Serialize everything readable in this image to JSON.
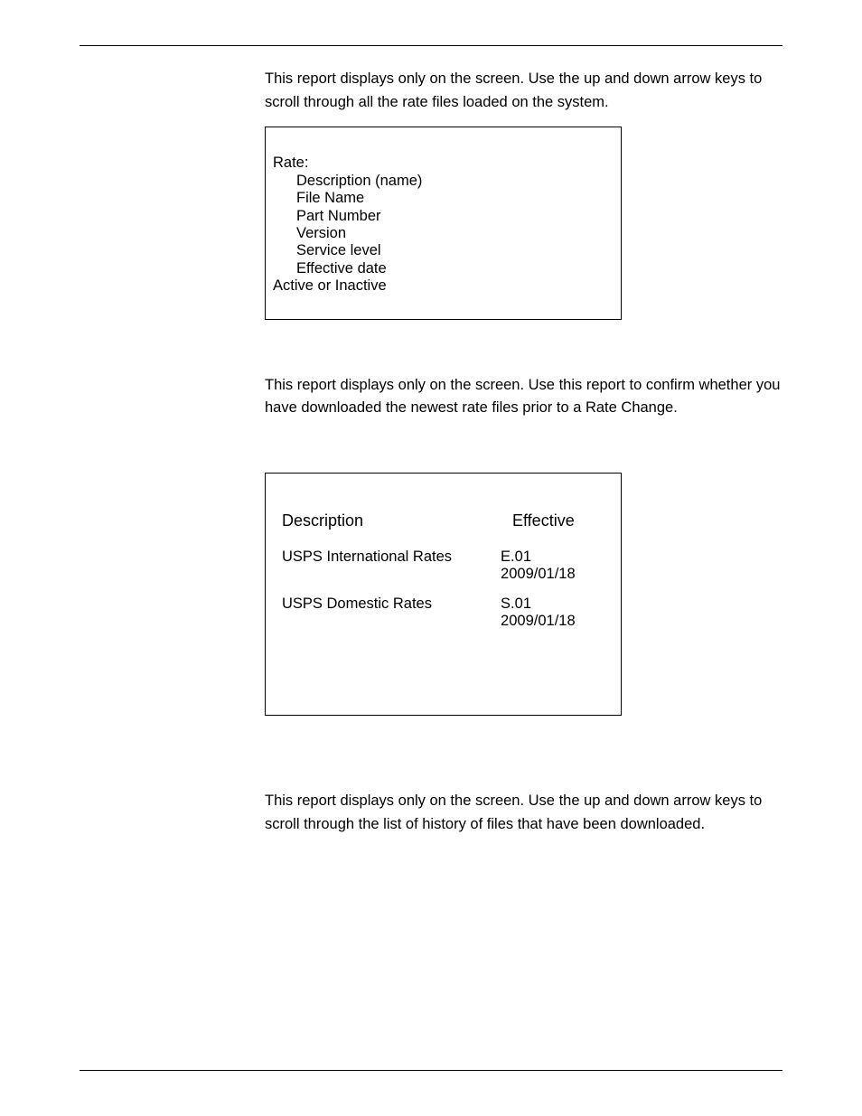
{
  "section1": {
    "paragraph": "This report displays only on the screen. Use the up and down arrow keys to scroll through all the rate files loaded on the system.",
    "box": {
      "title": "Rate:",
      "items": [
        "Description (name)",
        "File Name",
        "Part Number",
        "Version",
        "Service level",
        "Effective date"
      ],
      "footer": "Active or Inactive"
    }
  },
  "section2": {
    "paragraph": "This report displays only on the screen. Use this report to confirm whether you have downloaded the newest rate files prior to a Rate Change.",
    "table": {
      "header_desc": "Description",
      "header_eff": "Effective",
      "rows": [
        {
          "desc": "USPS International Rates",
          "eff": "E.01 2009/01/18"
        },
        {
          "desc": "USPS Domestic Rates",
          "eff": "S.01 2009/01/18"
        }
      ]
    }
  },
  "section3": {
    "paragraph": "This report displays only on the screen. Use the up and down arrow keys to scroll through  the list of history of files that have been downloaded."
  }
}
